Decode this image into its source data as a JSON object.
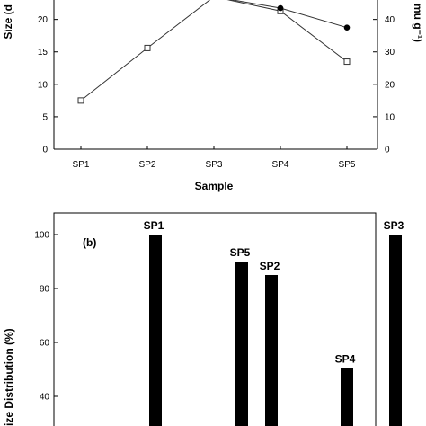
{
  "chart_data": [
    {
      "type": "line",
      "categories": [
        "SP1",
        "SP2",
        "SP3",
        "SP4",
        "SP5"
      ],
      "xlabel": "Sample",
      "ylabel_left": "Size (d",
      "ylabel_right": "mu g⁻¹)",
      "yticks_left": [
        "0",
        "5",
        "10",
        "15",
        "20"
      ],
      "yticks_right": [
        "0",
        "10",
        "20",
        "30",
        "40"
      ],
      "ylim_left": [
        0,
        23
      ],
      "ylim_right": [
        0,
        46
      ],
      "series": [
        {
          "axis": "left",
          "marker": "open-square",
          "values": [
            7.5,
            15.6,
            23.5,
            21.3,
            13.5
          ]
        },
        {
          "axis": "right",
          "marker": "filled-circle",
          "values": [
            null,
            null,
            47,
            43.5,
            37.5
          ]
        }
      ]
    },
    {
      "type": "bar",
      "panel_label": "(b)",
      "ylabel": "ize Distribution (%)",
      "yticks": [
        "40",
        "60",
        "80",
        "100"
      ],
      "ylim": [
        29,
        108
      ],
      "bars": [
        {
          "label": "SP1",
          "value": 100
        },
        {
          "label": "SP5",
          "value": 90
        },
        {
          "label": "SP2",
          "value": 85
        },
        {
          "label": "SP4",
          "value": 50.5
        },
        {
          "label": "SP3",
          "value": 100
        }
      ]
    }
  ]
}
